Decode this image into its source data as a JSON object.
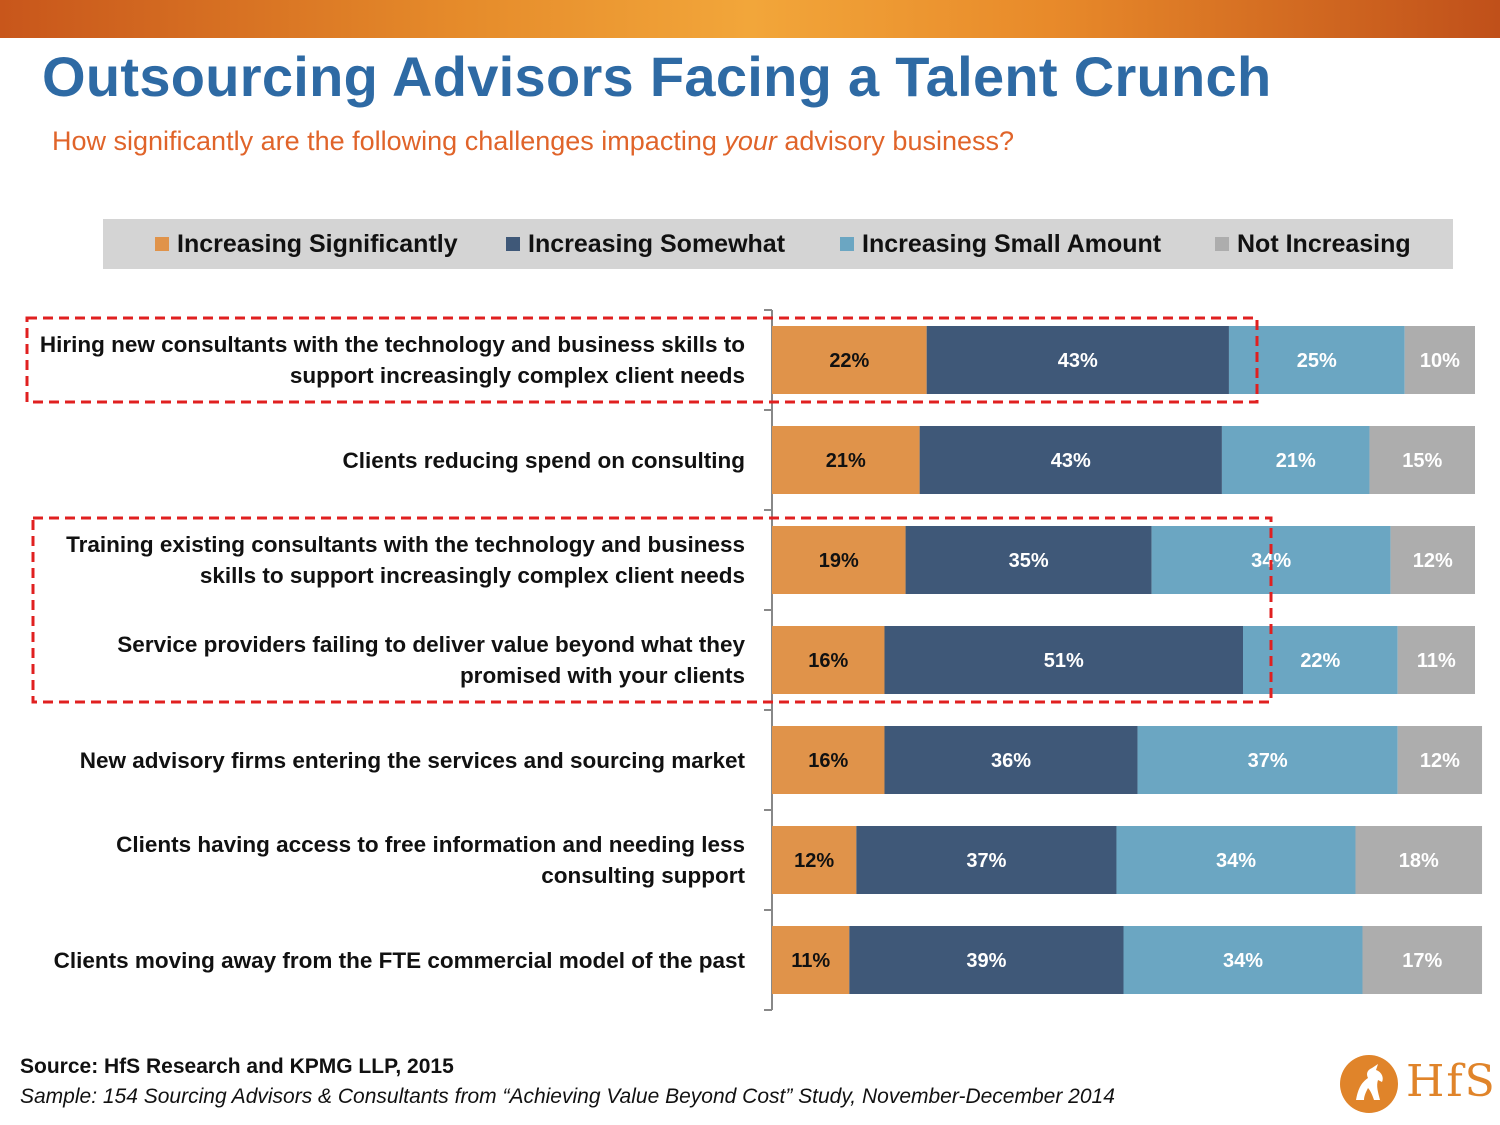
{
  "title": "Outsourcing Advisors Facing a Talent Crunch",
  "subtitle_before": "How significantly are the following challenges impacting ",
  "subtitle_emph": "your",
  "subtitle_after": " advisory business?",
  "colors": {
    "increasing_significantly": "#e0934a",
    "increasing_somewhat": "#3f5878",
    "increasing_small": "#6ba6c2",
    "not_increasing": "#adadad",
    "highlight": "#e02020",
    "title": "#2e6aa4",
    "subtitle": "#e0642a"
  },
  "source": "Source:  HfS Research and KPMG LLP, 2015",
  "sample": "Sample: 154 Sourcing Advisors & Consultants from “Achieving Value Beyond Cost” Study, November-December 2014",
  "logo_text": "HfS",
  "chart_data": {
    "type": "bar",
    "orientation": "horizontal",
    "stacked": true,
    "normalized_percent": true,
    "legend_position": "top",
    "categories": [
      "Hiring new consultants with the technology and business skills to support increasingly complex client needs",
      "Clients reducing spend on consulting",
      "Training existing consultants with the technology and business skills to support increasingly complex client needs",
      "Service providers failing to deliver value beyond what they promised with your clients",
      "New advisory firms entering the services and sourcing market",
      "Clients having access to free information and needing less consulting support",
      "Clients moving away from the FTE commercial model of the past"
    ],
    "series": [
      {
        "name": "Increasing Significantly",
        "color": "#e0934a",
        "values": [
          22,
          21,
          19,
          16,
          16,
          12,
          11
        ]
      },
      {
        "name": "Increasing Somewhat",
        "color": "#3f5878",
        "values": [
          43,
          43,
          35,
          51,
          36,
          37,
          39
        ]
      },
      {
        "name": "Increasing Small Amount",
        "color": "#6ba6c2",
        "values": [
          25,
          21,
          34,
          22,
          37,
          34,
          34
        ]
      },
      {
        "name": "Not Increasing",
        "color": "#adadad",
        "values": [
          10,
          15,
          12,
          11,
          12,
          18,
          17
        ]
      }
    ],
    "highlighted_categories": [
      [
        0
      ],
      [
        2,
        3
      ]
    ]
  }
}
